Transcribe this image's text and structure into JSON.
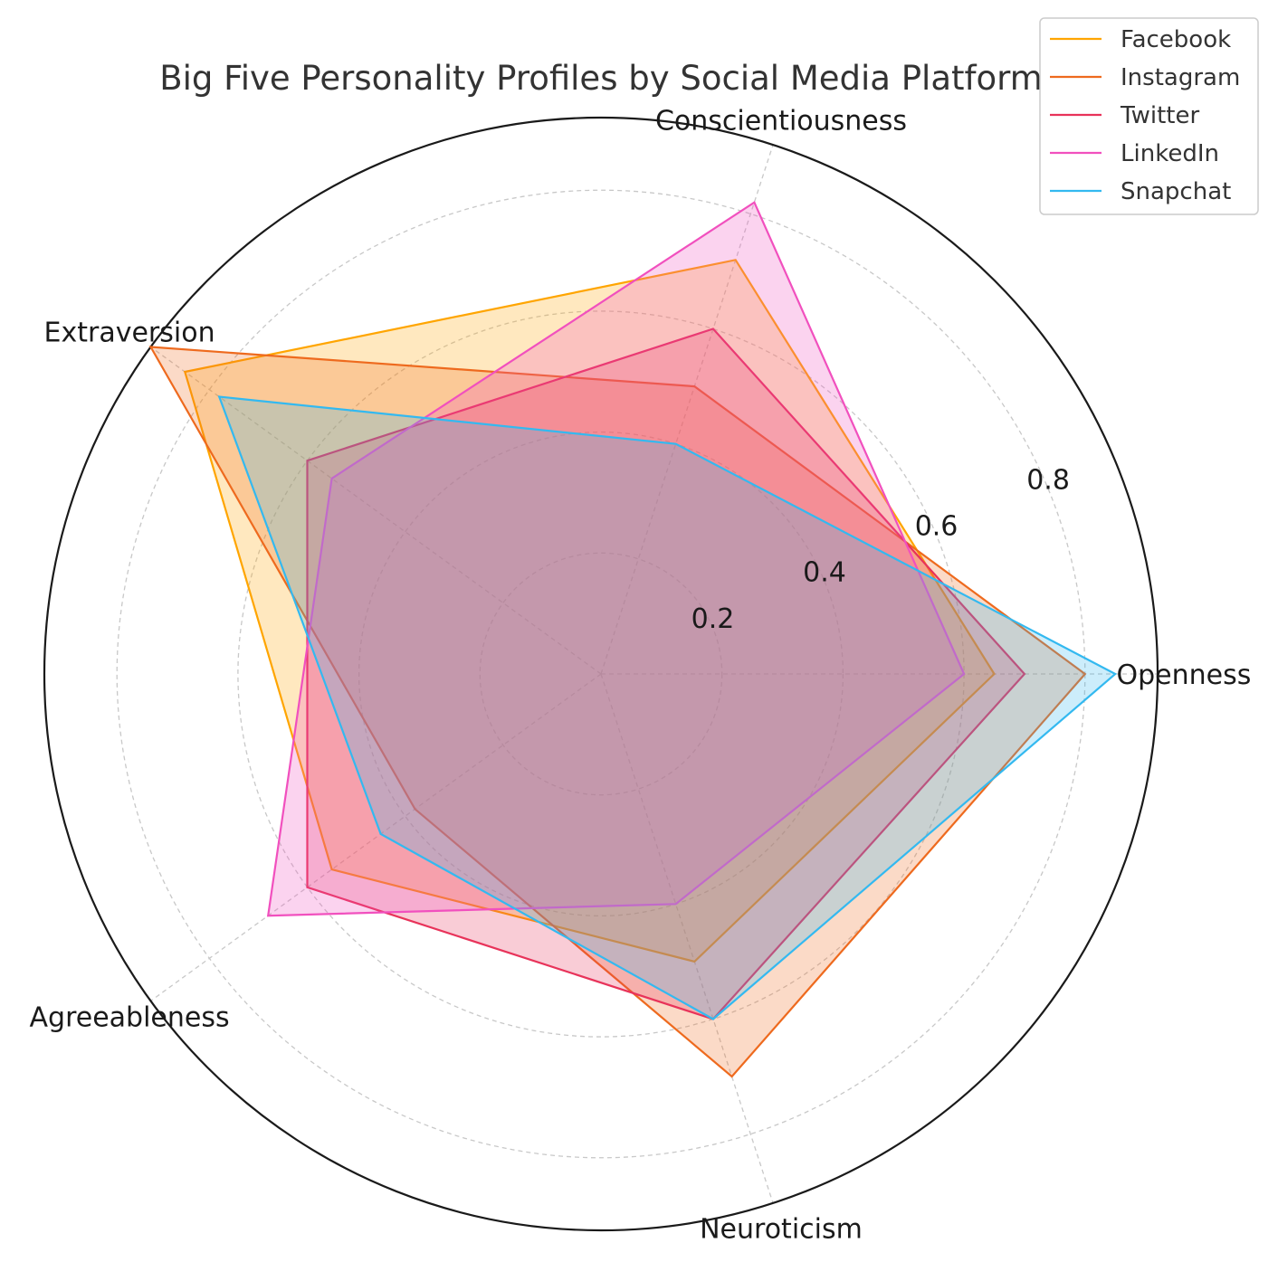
{
  "chart_data": {
    "type": "radar",
    "title": "Big Five Personality Profiles by Social Media Platform",
    "axes": [
      "Openness",
      "Conscientiousness",
      "Extraversion",
      "Agreeableness",
      "Neuroticism"
    ],
    "rlim": [
      0,
      0.92
    ],
    "rticks": [
      0.2,
      0.4,
      0.6,
      0.8
    ],
    "rtick_labels": [
      "0.2",
      "0.4",
      "0.6",
      "0.8"
    ],
    "grid": true,
    "legend_position": "top-right",
    "series": [
      {
        "name": "Facebook",
        "values": [
          0.65,
          0.72,
          0.85,
          0.55,
          0.5
        ],
        "color": "#FFA500"
      },
      {
        "name": "Instagram",
        "values": [
          0.8,
          0.5,
          0.92,
          0.38,
          0.7
        ],
        "color": "#EE6A1E"
      },
      {
        "name": "Twitter",
        "values": [
          0.7,
          0.6,
          0.6,
          0.6,
          0.6
        ],
        "color": "#E8335A"
      },
      {
        "name": "LinkedIn",
        "values": [
          0.6,
          0.82,
          0.55,
          0.68,
          0.4
        ],
        "color": "#F150BE"
      },
      {
        "name": "Snapchat",
        "values": [
          0.85,
          0.4,
          0.78,
          0.45,
          0.6
        ],
        "color": "#33B9F0"
      }
    ]
  }
}
